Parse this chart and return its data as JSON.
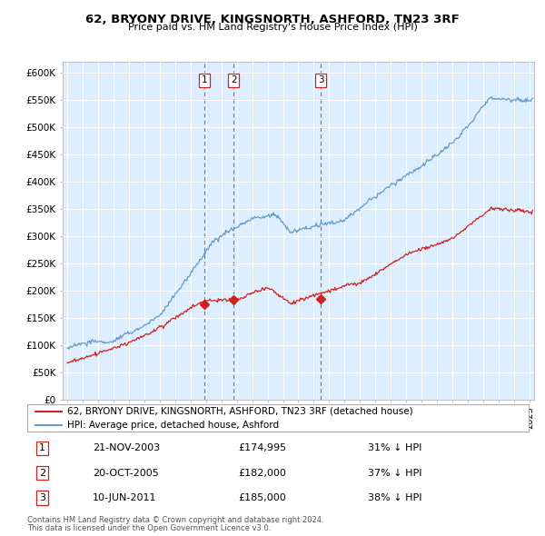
{
  "title": "62, BRYONY DRIVE, KINGSNORTH, ASHFORD, TN23 3RF",
  "subtitle": "Price paid vs. HM Land Registry's House Price Index (HPI)",
  "ylabel_ticks": [
    "£0",
    "£50K",
    "£100K",
    "£150K",
    "£200K",
    "£250K",
    "£300K",
    "£350K",
    "£400K",
    "£450K",
    "£500K",
    "£550K",
    "£600K"
  ],
  "ytick_values": [
    0,
    50000,
    100000,
    150000,
    200000,
    250000,
    300000,
    350000,
    400000,
    450000,
    500000,
    550000,
    600000
  ],
  "legend_line1": "62, BRYONY DRIVE, KINGSNORTH, ASHFORD, TN23 3RF (detached house)",
  "legend_line2": "HPI: Average price, detached house, Ashford",
  "transactions": [
    {
      "num": 1,
      "date": "21-NOV-2003",
      "price": "£174,995",
      "pct": "31% ↓ HPI",
      "x": 2003.9
    },
    {
      "num": 2,
      "date": "20-OCT-2005",
      "price": "£182,000",
      "pct": "37% ↓ HPI",
      "x": 2005.8
    },
    {
      "num": 3,
      "date": "10-JUN-2011",
      "price": "£185,000",
      "pct": "38% ↓ HPI",
      "x": 2011.45
    }
  ],
  "footnote1": "Contains HM Land Registry data © Crown copyright and database right 2024.",
  "footnote2": "This data is licensed under the Open Government Licence v3.0.",
  "hpi_color": "#6699cc",
  "price_color": "#cc2222",
  "vline_color": "#cc4444",
  "chart_bg": "#ddeeff",
  "background_color": "#ffffff",
  "grid_color": "#ffffff",
  "xmin": 1995,
  "xmax": 2025,
  "ymin": 0,
  "ymax": 620000
}
